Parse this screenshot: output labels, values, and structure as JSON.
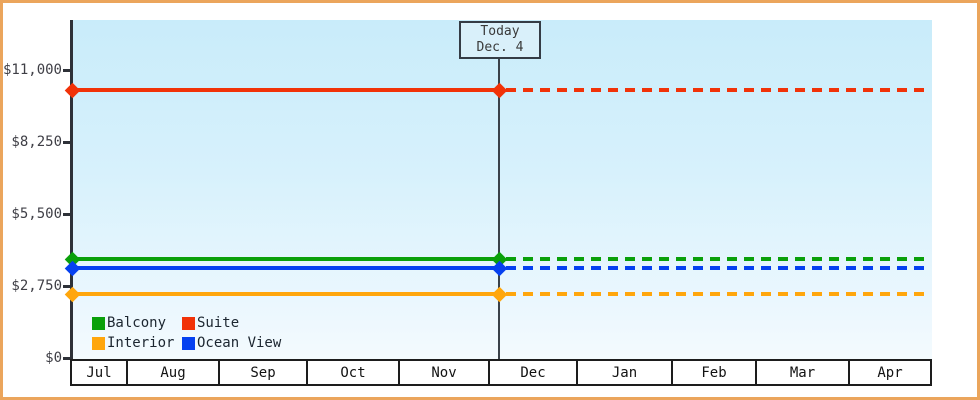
{
  "window": {
    "frame_color": "#eba55c",
    "background_color": "#ffffff",
    "plot_gradient_top": "#c9ecfa",
    "plot_gradient_bottom": "#f4fbfe"
  },
  "chart_data": {
    "type": "line",
    "title": "",
    "description": "Flat price history lines per cabin category; solid up to today, dotted projection after today",
    "y_axis": {
      "tick_labels": [
        "$11,000",
        "$8,250",
        "$5,500",
        "$2,750",
        "$0"
      ],
      "tick_values": [
        11000,
        8250,
        5500,
        2750,
        0
      ],
      "min": 0,
      "max": 11000,
      "grid": "off"
    },
    "x_axis": {
      "months": [
        "Jul",
        "Aug",
        "Sep",
        "Oct",
        "Nov",
        "Dec",
        "Jan",
        "Feb",
        "Mar",
        "Apr"
      ]
    },
    "today_marker": {
      "line1": "Today",
      "line2": "Dec. 4",
      "month": "Dec",
      "day": 4
    },
    "series": [
      {
        "name": "Suite",
        "color": "#f13208",
        "value": 10235,
        "left_style": "solid",
        "right_style": "dashed"
      },
      {
        "name": "Balcony",
        "color": "#0aa00a",
        "value": 3800,
        "left_style": "solid",
        "right_style": "dashed"
      },
      {
        "name": "Ocean View",
        "color": "#0540f0",
        "value": 3450,
        "left_style": "solid",
        "right_style": "dashed"
      },
      {
        "name": "Interior",
        "color": "#ffa60d",
        "value": 2445,
        "left_style": "solid",
        "right_style": "dashed"
      }
    ],
    "legend": {
      "position": "bottom-left",
      "items": [
        {
          "label": "Balcony",
          "color": "#0aa00a"
        },
        {
          "label": "Suite",
          "color": "#f13208"
        },
        {
          "label": "Interior",
          "color": "#ffa60d"
        },
        {
          "label": "Ocean View",
          "color": "#0540f0"
        }
      ]
    }
  }
}
